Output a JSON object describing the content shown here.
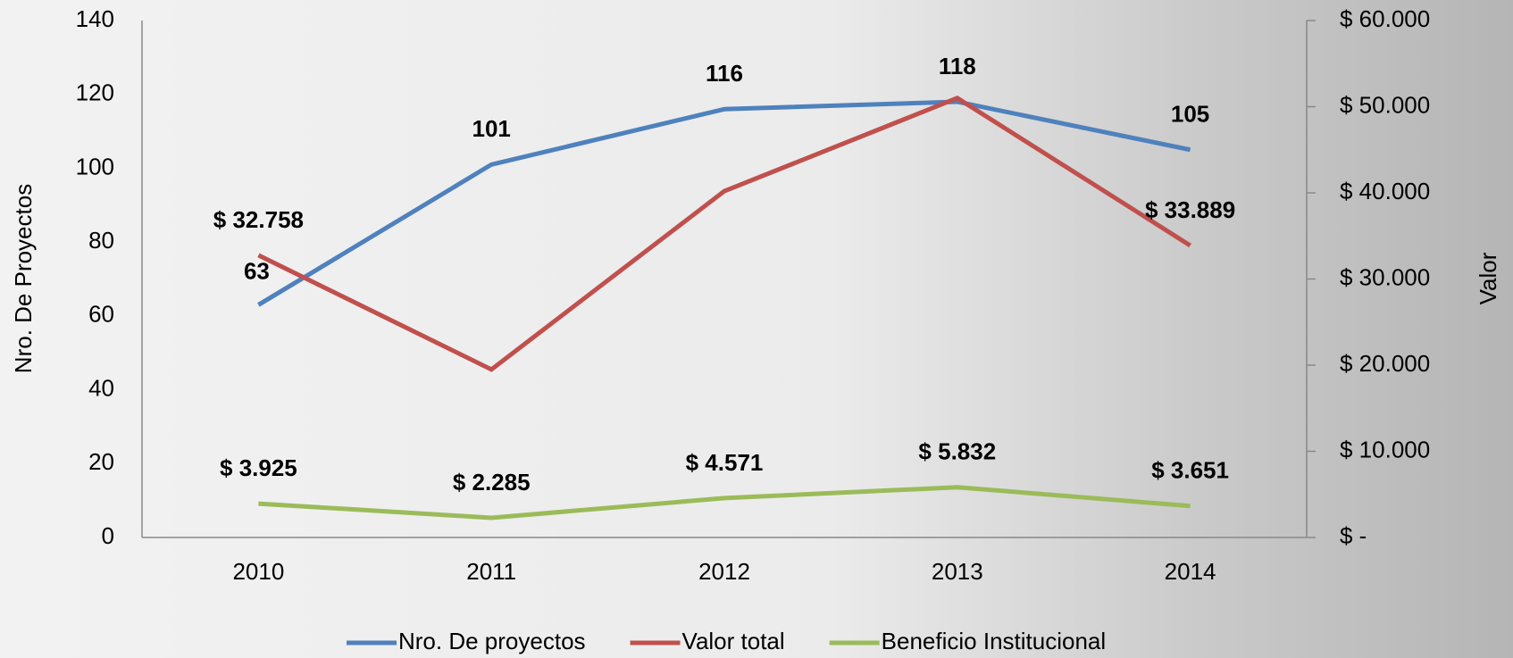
{
  "chart_data": {
    "type": "line",
    "categories": [
      "2010",
      "2011",
      "2012",
      "2013",
      "2014"
    ],
    "y_label": "Nro. De Proyectos",
    "y2_label": "Valor",
    "ylim": [
      0,
      140
    ],
    "yticks": [
      0,
      20,
      40,
      60,
      80,
      100,
      120,
      140
    ],
    "y2lim": [
      0,
      60000
    ],
    "y2ticks": [
      {
        "value": 0,
        "label": "$ -"
      },
      {
        "value": 10000,
        "label": "$ 10.000"
      },
      {
        "value": 20000,
        "label": "$ 20.000"
      },
      {
        "value": 30000,
        "label": "$ 30.000"
      },
      {
        "value": 40000,
        "label": "$ 40.000"
      },
      {
        "value": 50000,
        "label": "$ 50.000"
      },
      {
        "value": 60000,
        "label": "$ 60.000"
      }
    ],
    "legend": "bottom",
    "series": [
      {
        "name": "Nro. De proyectos",
        "color": "#4f81bd",
        "values": [
          63,
          101,
          116,
          118,
          105
        ]
      },
      {
        "name": "Valor total",
        "color": "#c0504d",
        "axis": "y2",
        "values": [
          32758,
          19500,
          40200,
          51000,
          33889
        ],
        "value_labels": [
          "$ 32.758",
          null,
          null,
          null,
          "$ 33.889"
        ]
      },
      {
        "name": "Beneficio Institucional",
        "color": "#9bbb59",
        "axis": "y2",
        "values": [
          3925,
          2285,
          4571,
          5832,
          3651
        ],
        "value_labels": [
          "$ 3.925",
          "$ 2.285",
          "$ 4.571",
          "$ 5.832",
          "$ 3.651"
        ]
      }
    ]
  }
}
